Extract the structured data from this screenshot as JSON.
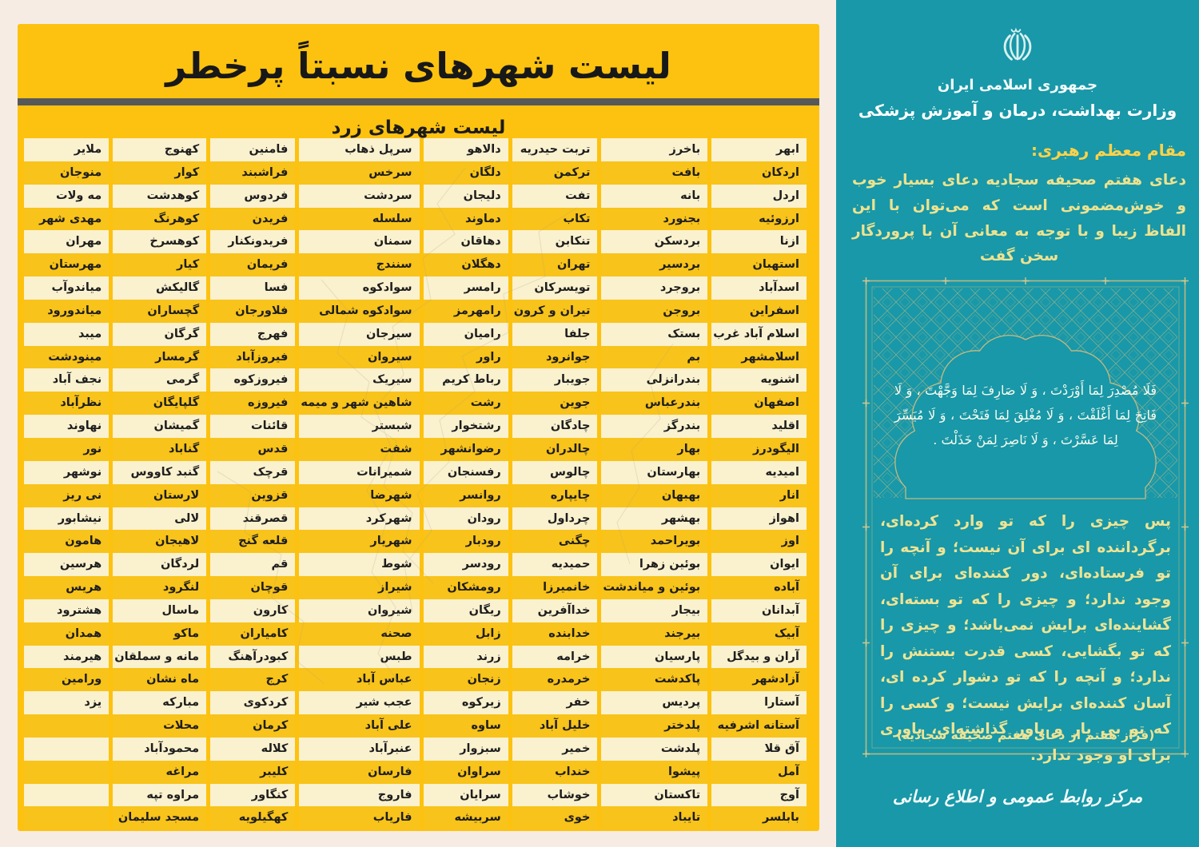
{
  "left_panel": {
    "title": "لیست شهرهای نسبتاً پرخطر",
    "subtitle": "لیست شهرهای زرد",
    "row_colors": {
      "cream": "#FAF1CF",
      "gold": "#F8C31A",
      "panel": "#FDC20F"
    },
    "columns": [
      [
        "ابهر",
        "اردکان",
        "اردل",
        "ارزوئیه",
        "ازنا",
        "استهبان",
        "اسدآباد",
        "اسفراین",
        "اسلام آباد غرب",
        "اسلامشهر",
        "اشنویه",
        "اصفهان",
        "اقلید",
        "الیگودرز",
        "امیدیه",
        "انار",
        "اهواز",
        "اوز",
        "ایوان",
        "آباده",
        "آبدانان",
        "آبیک",
        "آران و بیدگل",
        "آزادشهر",
        "آستارا",
        "آستانه اشرفیه",
        "آق قلا",
        "آمل",
        "آوج",
        "بابلسر"
      ],
      [
        "باخرز",
        "بافت",
        "بانه",
        "بجنورد",
        "بردسکن",
        "بردسیر",
        "بروجرد",
        "بروجن",
        "بستک",
        "بم",
        "بندرانزلی",
        "بندرعباس",
        "بندرگز",
        "بهار",
        "بهارستان",
        "بهبهان",
        "بهشهر",
        "بویراحمد",
        "بوئین زهرا",
        "بوئین و میاندشت",
        "بیجار",
        "بیرجند",
        "پارسیان",
        "پاکدشت",
        "پردیس",
        "پلدختر",
        "پلدشت",
        "پیشوا",
        "تاکستان",
        "تایباد"
      ],
      [
        "تربت حیدریه",
        "ترکمن",
        "تفت",
        "تکاب",
        "تنکابن",
        "تهران",
        "تویسرکان",
        "تیران و کرون",
        "جلفا",
        "جوانرود",
        "جویبار",
        "جوین",
        "چادگان",
        "چالدران",
        "چالوس",
        "چایپاره",
        "چرداول",
        "چگنی",
        "حمیدیه",
        "خانمیرزا",
        "خداآفرین",
        "خدابنده",
        "خرامه",
        "خرمدره",
        "خفر",
        "خلیل آباد",
        "خمیر",
        "خنداب",
        "خوشاب",
        "خوی"
      ],
      [
        "دالاهو",
        "دلگان",
        "دلیجان",
        "دماوند",
        "دهاقان",
        "دهگلان",
        "رامسر",
        "رامهرمز",
        "رامیان",
        "راور",
        "رباط کریم",
        "رشت",
        "رشتخوار",
        "رضوانشهر",
        "رفسنجان",
        "روانسر",
        "رودان",
        "رودبار",
        "رودسر",
        "رومشکان",
        "ریگان",
        "زابل",
        "زرند",
        "زنجان",
        "زیرکوه",
        "ساوه",
        "سبزوار",
        "سراوان",
        "سرایان",
        "سربیشه"
      ],
      [
        "سرپل ذهاب",
        "سرخس",
        "سردشت",
        "سلسله",
        "سمنان",
        "سنندج",
        "سوادکوه",
        "سوادکوه شمالی",
        "سیرجان",
        "سیروان",
        "سیریک",
        "شاهین شهر و میمه",
        "شبستر",
        "شفت",
        "شمیرانات",
        "شهرضا",
        "شهرکرد",
        "شهریار",
        "شوط",
        "شیراز",
        "شیروان",
        "صحنه",
        "طبس",
        "عباس آباد",
        "عجب شیر",
        "علی آباد",
        "عنبرآباد",
        "فارسان",
        "فاروج",
        "فاریاب"
      ],
      [
        "فامنین",
        "فراشبند",
        "فردوس",
        "فریدن",
        "فریدونکنار",
        "فریمان",
        "فسا",
        "فلاورجان",
        "فهرج",
        "فیروزآباد",
        "فیروزکوه",
        "فیروزه",
        "قائنات",
        "قدس",
        "قرچک",
        "قزوین",
        "قصرقند",
        "قلعه گنج",
        "قم",
        "قوچان",
        "کارون",
        "کامیاران",
        "کبودرآهنگ",
        "کرج",
        "کردکوی",
        "کرمان",
        "کلاله",
        "کلیبر",
        "کنگاور",
        "کهگیلویه"
      ],
      [
        "کهنوج",
        "کوار",
        "کوهدشت",
        "کوهرنگ",
        "کوهسرخ",
        "کیار",
        "گالیکش",
        "گچساران",
        "گرگان",
        "گرمسار",
        "گرمی",
        "گلپایگان",
        "گمیشان",
        "گناباد",
        "گنبد کاووس",
        "لارستان",
        "لالی",
        "لاهیجان",
        "لردگان",
        "لنگرود",
        "ماسال",
        "ماکو",
        "مانه و سملقان",
        "ماه نشان",
        "مبارکه",
        "محلات",
        "محمودآباد",
        "مراغه",
        "مراوه تپه",
        "مسجد سلیمان"
      ],
      [
        "ملایر",
        "منوجان",
        "مه ولات",
        "مهدی شهر",
        "مهران",
        "مهرستان",
        "میاندوآب",
        "میاندورود",
        "میبد",
        "مینودشت",
        "نجف آباد",
        "نظرآباد",
        "نهاوند",
        "نور",
        "نوشهر",
        "نی ریز",
        "نیشابور",
        "هامون",
        "هرسین",
        "هریس",
        "هشترود",
        "همدان",
        "هیرمند",
        "ورامین",
        "یزد"
      ]
    ]
  },
  "right_panel": {
    "background": "#1898A8",
    "emblem_icon": "iran-emblem",
    "gov_line1": "جمهوری اسلامی ایران",
    "gov_line2": "وزارت بهداشت، درمان و آموزش پزشکی",
    "leader_heading": "مقام معظم رهبری:",
    "leader_quote": "دعای هفتم صحیفه سجادیه دعای بسیار خوب و خوش‌مضمونی است که می‌توان با این الفاظ زیبا و با توجه به معانی آن با پروردگار سخن گفت",
    "prayer_arabic": "فَلَا مُصْدِرَ لِمَا أَوْرَدْتَ ، وَ لَا صَارِفَ لِمَا وَجَّهْتَ ، وَ لَا فَاتِحَ لِمَا أَغْلَقْتَ ، وَ لَا مُغْلِقَ لِمَا فَتَحْتَ ، وَ لَا مُیَسِّرَ لِمَا عَسَّرْتَ ، وَ لَا نَاصِرَ لِمَنْ خَذَلْتَ .",
    "prayer_translation": "پس چیزی را که تو وارد کرده‌ای، برگرداننده ای برای آن نیست؛ و آنچه را تو فرستاده‌ای، دور کننده‌ای برای آن وجود ندارد؛ و چیزی را که تو بسته‌ای، گشاینده‌ای برایش نمی‌باشد؛ و چیزی را که تو بگشایی، کسی قدرت بستنش را ندارد؛ و آنچه را که تو دشوار کرده ای، آسان کننده‌ای برایش نیست؛ و کسی را که تو بی یار و یاور گذاشته‌ای، یاوری برای او وجود ندارد.",
    "prayer_citation": "(فراز هفتم از دعای هفتم صحیفه سجادیه)",
    "footer": "مرکز روابط عمومی و اطلاع رسانی",
    "accent_yellow": "#FFD24A",
    "body_yellow": "#EFE394",
    "frame_gold": "#D8BD7D"
  }
}
